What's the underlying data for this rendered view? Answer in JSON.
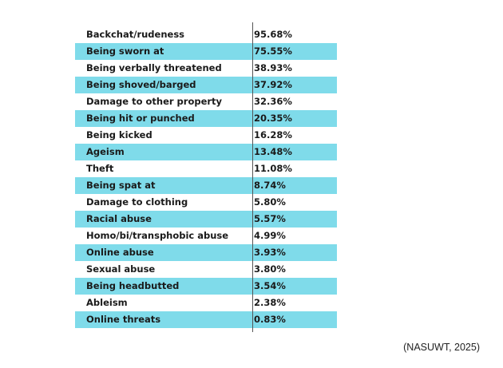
{
  "table": {
    "rows": [
      {
        "label": "Backchat/rudeness",
        "value": "95.68%"
      },
      {
        "label": "Being sworn at",
        "value": "75.55%"
      },
      {
        "label": "Being verbally threatened",
        "value": "38.93%"
      },
      {
        "label": "Being shoved/barged",
        "value": "37.92%"
      },
      {
        "label": "Damage to other property",
        "value": "32.36%"
      },
      {
        "label": "Being hit or punched",
        "value": "20.35%"
      },
      {
        "label": "Being kicked",
        "value": "16.28%"
      },
      {
        "label": "Ageism",
        "value": "13.48%"
      },
      {
        "label": "Theft",
        "value": "11.08%"
      },
      {
        "label": "Being spat at",
        "value": "8.74%"
      },
      {
        "label": "Damage to clothing",
        "value": "5.80%"
      },
      {
        "label": "Racial abuse",
        "value": "5.57%"
      },
      {
        "label": "Homo/bi/transphobic abuse",
        "value": "4.99%"
      },
      {
        "label": "Online abuse",
        "value": "3.93%"
      },
      {
        "label": "Sexual abuse",
        "value": "3.80%"
      },
      {
        "label": "Being headbutted",
        "value": "3.54%"
      },
      {
        "label": "Ableism",
        "value": "2.38%"
      },
      {
        "label": "Online threats",
        "value": "0.83%"
      }
    ]
  },
  "source": "(NASUWT, 2025)",
  "colors": {
    "stripe": "#7fdbea",
    "text": "#1a1a1a",
    "divider": "#555555"
  }
}
